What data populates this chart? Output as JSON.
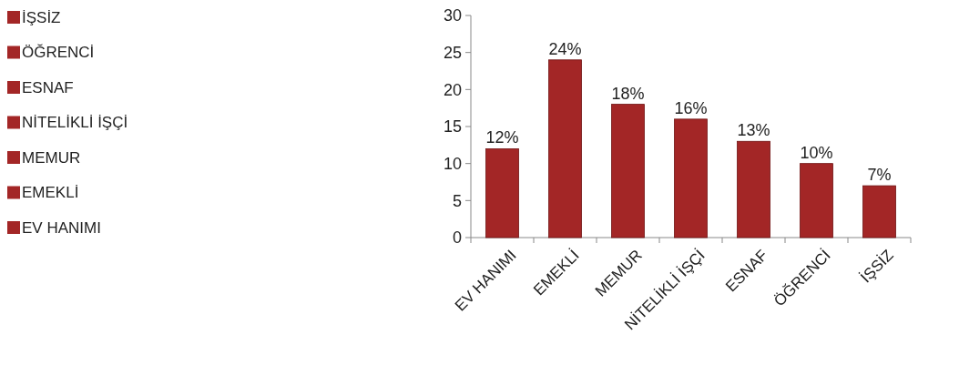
{
  "chart_data": {
    "type": "bar",
    "categories": [
      "EV HANIMI",
      "EMEKLİ",
      "MEMUR",
      "NİTELİKLİ İŞÇİ",
      "ESNAF",
      "ÖĞRENCİ",
      "İŞSİZ"
    ],
    "values": [
      12,
      24,
      18,
      16,
      13,
      10,
      7
    ],
    "value_labels": [
      "12%",
      "24%",
      "18%",
      "16%",
      "13%",
      "10%",
      "7%"
    ],
    "colors": [
      "#a32626",
      "#a32626",
      "#a32626",
      "#a32626",
      "#a32626",
      "#a32626",
      "#a32626"
    ],
    "ylim": [
      0,
      30
    ],
    "yticks": [
      0,
      5,
      10,
      15,
      20,
      25,
      30
    ]
  }
}
